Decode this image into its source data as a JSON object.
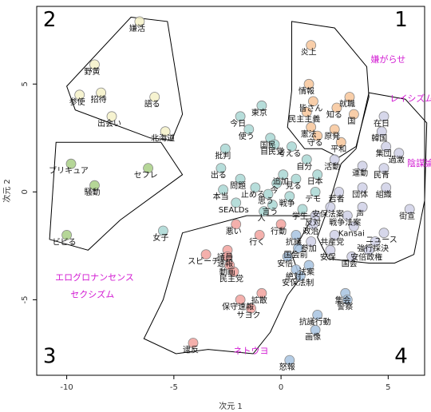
{
  "chart_data": {
    "type": "scatter",
    "title": "",
    "xlabel": "次元 1",
    "ylabel": "次元 2",
    "xlim": [
      -11.4,
      6.7
    ],
    "ylim": [
      -8.5,
      8.6
    ],
    "xticks": [
      -10,
      -5,
      0,
      5
    ],
    "yticks": [
      -5,
      0,
      5
    ],
    "grid": false,
    "colors": {
      "c1": "#f7c59a",
      "c2": "#f5f1c8",
      "c3": "#a8cf85",
      "c4": "#a9d7d3",
      "c5": "#f2a29e",
      "c6": "#a7c3e0",
      "c7": "#cfd0e6",
      "edge": "#888888",
      "annot": "#d21ad2",
      "region": "#000000"
    },
    "points": [
      {
        "label": "嫌活",
        "x": -6.6,
        "y": 7.9,
        "c": "c2"
      },
      {
        "label": "野黄",
        "x": -8.7,
        "y": 5.9,
        "c": "c2"
      },
      {
        "label": "招待",
        "x": -8.4,
        "y": 4.6,
        "c": "c2"
      },
      {
        "label": "参使",
        "x": -9.4,
        "y": 4.5,
        "c": "c2"
      },
      {
        "label": "語る",
        "x": -5.9,
        "y": 4.4,
        "c": "c2"
      },
      {
        "label": "出会い",
        "x": -7.9,
        "y": 3.5,
        "c": "c2"
      },
      {
        "label": "北海道",
        "x": -5.4,
        "y": 2.8,
        "c": "c2"
      },
      {
        "label": "ブリキュア",
        "x": -9.8,
        "y": 1.3,
        "c": "c3"
      },
      {
        "label": "セフレ",
        "x": -6.2,
        "y": 1.1,
        "c": "c3"
      },
      {
        "label": "騒動",
        "x": -8.7,
        "y": 0.3,
        "c": "c3"
      },
      {
        "label": "ビビる",
        "x": -10.0,
        "y": -2.0,
        "c": "c3"
      },
      {
        "label": "女子",
        "x": -5.5,
        "y": -1.8,
        "c": "c4"
      },
      {
        "label": "東京",
        "x": -0.9,
        "y": 4.0,
        "c": "c4"
      },
      {
        "label": "今日",
        "x": -1.9,
        "y": 3.5,
        "c": "c4"
      },
      {
        "label": "使う",
        "x": -1.5,
        "y": 2.9,
        "c": "c4"
      },
      {
        "label": "国民",
        "x": -0.5,
        "y": 2.5,
        "c": "c4"
      },
      {
        "label": "自民党",
        "x": -0.3,
        "y": 2.2,
        "c": "c4"
      },
      {
        "label": "考える",
        "x": 0.5,
        "y": 2.1,
        "c": "c4"
      },
      {
        "label": "批判",
        "x": -2.6,
        "y": 2.0,
        "c": "c4"
      },
      {
        "label": "自分",
        "x": 1.2,
        "y": 1.5,
        "c": "c4"
      },
      {
        "label": "出る",
        "x": -2.8,
        "y": 1.1,
        "c": "c4"
      },
      {
        "label": "問題",
        "x": -1.9,
        "y": 0.6,
        "c": "c4"
      },
      {
        "label": "追加",
        "x": 0.1,
        "y": 0.8,
        "c": "c4"
      },
      {
        "label": "見る",
        "x": 0.7,
        "y": 0.6,
        "c": "c4"
      },
      {
        "label": "日本",
        "x": 1.7,
        "y": 0.8,
        "c": "c4"
      },
      {
        "label": "本当",
        "x": -2.7,
        "y": 0.1,
        "c": "c4"
      },
      {
        "label": "止める",
        "x": -1.2,
        "y": 0.2,
        "c": "c4"
      },
      {
        "label": "今",
        "x": -0.2,
        "y": 0.4,
        "c": "c4"
      },
      {
        "label": "思う",
        "x": -0.6,
        "y": -0.1,
        "c": "c4"
      },
      {
        "label": "戦争",
        "x": 0.4,
        "y": -0.2,
        "c": "c4"
      },
      {
        "label": "デモ",
        "x": 1.6,
        "y": 0.0,
        "c": "c4"
      },
      {
        "label": "SEALDs",
        "x": -2.1,
        "y": -0.5,
        "c": "c4"
      },
      {
        "label": "言う",
        "x": -0.4,
        "y": -0.6,
        "c": "c4"
      },
      {
        "label": "学生",
        "x": 1.0,
        "y": -0.8,
        "c": "c4"
      },
      {
        "label": "人",
        "x": -0.8,
        "y": -0.9,
        "c": "c4"
      },
      {
        "label": "炎上",
        "x": 1.4,
        "y": 6.8,
        "c": "c1"
      },
      {
        "label": "情報",
        "x": 1.3,
        "y": 5.0,
        "c": "c1"
      },
      {
        "label": "皆さん",
        "x": 1.5,
        "y": 4.2,
        "c": "c1"
      },
      {
        "label": "就職",
        "x": 3.2,
        "y": 4.4,
        "c": "c1"
      },
      {
        "label": "知る",
        "x": 2.6,
        "y": 3.9,
        "c": "c1"
      },
      {
        "label": "民主主義",
        "x": 1.2,
        "y": 3.7,
        "c": "c1"
      },
      {
        "label": "国",
        "x": 3.4,
        "y": 3.6,
        "c": "c1"
      },
      {
        "label": "憲法",
        "x": 1.4,
        "y": 3.0,
        "c": "c1"
      },
      {
        "label": "原発",
        "x": 2.5,
        "y": 2.9,
        "c": "c1"
      },
      {
        "label": "守る",
        "x": 1.7,
        "y": 2.6,
        "c": "c1"
      },
      {
        "label": "平和",
        "x": 2.8,
        "y": 2.3,
        "c": "c1"
      },
      {
        "label": "在日",
        "x": 4.8,
        "y": 3.5,
        "c": "c7"
      },
      {
        "label": "韓国",
        "x": 4.7,
        "y": 2.8,
        "c": "c7"
      },
      {
        "label": "集団",
        "x": 4.9,
        "y": 2.1,
        "c": "c7"
      },
      {
        "label": "過激",
        "x": 5.5,
        "y": 1.8,
        "c": "c7"
      },
      {
        "label": "活動",
        "x": 2.5,
        "y": 1.5,
        "c": "c7"
      },
      {
        "label": "運動",
        "x": 3.8,
        "y": 1.2,
        "c": "c7"
      },
      {
        "label": "民青",
        "x": 4.8,
        "y": 1.1,
        "c": "c7"
      },
      {
        "label": "団体",
        "x": 3.8,
        "y": 0.2,
        "c": "c7"
      },
      {
        "label": "組織",
        "x": 4.9,
        "y": 0.2,
        "c": "c7"
      },
      {
        "label": "若者",
        "x": 2.7,
        "y": 0.0,
        "c": "c7"
      },
      {
        "label": "街宣",
        "x": 6.0,
        "y": -0.8,
        "c": "c7"
      },
      {
        "label": "安保法案",
        "x": 2.3,
        "y": -0.7,
        "c": "c7"
      },
      {
        "label": "声",
        "x": 3.8,
        "y": -0.7,
        "c": "c7"
      },
      {
        "label": "反対",
        "x": 1.6,
        "y": -1.1,
        "c": "c7"
      },
      {
        "label": "戦争法案",
        "x": 3.1,
        "y": -1.1,
        "c": "c7"
      },
      {
        "label": "政治",
        "x": 1.5,
        "y": -1.5,
        "c": "c7"
      },
      {
        "label": "Kansai",
        "x": 3.4,
        "y": -1.6,
        "c": "c7"
      },
      {
        "label": "共産党",
        "x": 2.5,
        "y": -2.0,
        "c": "c7"
      },
      {
        "label": "ニュース",
        "x": 4.8,
        "y": -1.9,
        "c": "c7"
      },
      {
        "label": "強行採決",
        "x": 4.4,
        "y": -2.3,
        "c": "c7"
      },
      {
        "label": "参加",
        "x": 1.4,
        "y": -2.3,
        "c": "c7"
      },
      {
        "label": "安保",
        "x": 2.3,
        "y": -2.7,
        "c": "c7"
      },
      {
        "label": "安倍政権",
        "x": 4.1,
        "y": -2.7,
        "c": "c7"
      },
      {
        "label": "国会",
        "x": 3.3,
        "y": -3.0,
        "c": "c7"
      },
      {
        "label": "悪い",
        "x": -2.1,
        "y": -1.5,
        "c": "c5"
      },
      {
        "label": "行動",
        "x": 0.0,
        "y": -1.5,
        "c": "c5"
      },
      {
        "label": "行く",
        "x": -1.0,
        "y": -2.0,
        "c": "c5"
      },
      {
        "label": "議員",
        "x": -2.5,
        "y": -2.7,
        "c": "c5"
      },
      {
        "label": "スピーチ",
        "x": -3.5,
        "y": -2.9,
        "c": "c5"
      },
      {
        "label": "速報",
        "x": -2.5,
        "y": -3.0,
        "c": "c5"
      },
      {
        "label": "動画",
        "x": -2.4,
        "y": -3.4,
        "c": "c5"
      },
      {
        "label": "民主党",
        "x": -2.2,
        "y": -3.7,
        "c": "c5"
      },
      {
        "label": "拡散",
        "x": -0.9,
        "y": -4.7,
        "c": "c5"
      },
      {
        "label": "保守速報",
        "x": -1.9,
        "y": -5.0,
        "c": "c5"
      },
      {
        "label": "サヨク",
        "x": -1.4,
        "y": -5.4,
        "c": "c5"
      },
      {
        "label": "逮反",
        "x": -4.1,
        "y": -7.0,
        "c": "c5"
      },
      {
        "label": "抗議",
        "x": 0.7,
        "y": -2.0,
        "c": "c6"
      },
      {
        "label": "国会前",
        "x": 0.8,
        "y": -2.6,
        "c": "c6"
      },
      {
        "label": "安倍",
        "x": 0.3,
        "y": -3.0,
        "c": "c6"
      },
      {
        "label": "法案",
        "x": 1.3,
        "y": -3.4,
        "c": "c6"
      },
      {
        "label": "絶対",
        "x": 0.7,
        "y": -3.6,
        "c": "c6"
      },
      {
        "label": "安保法制",
        "x": 0.9,
        "y": -3.9,
        "c": "c6"
      },
      {
        "label": "集会",
        "x": 3.0,
        "y": -4.7,
        "c": "c6"
      },
      {
        "label": "警察",
        "x": 3.1,
        "y": -5.0,
        "c": "c6"
      },
      {
        "label": "抗議行動",
        "x": 1.7,
        "y": -5.7,
        "c": "c6"
      },
      {
        "label": "画像",
        "x": 1.6,
        "y": -6.4,
        "c": "c6"
      },
      {
        "label": "怒報",
        "x": 0.4,
        "y": -7.8,
        "c": "c6"
      }
    ],
    "regions": [
      [
        [
          -7.0,
          8.1
        ],
        [
          -5.3,
          7.9
        ],
        [
          -4.6,
          3.6
        ],
        [
          -5.1,
          2.4
        ],
        [
          -6.1,
          2.5
        ],
        [
          -9.6,
          3.8
        ],
        [
          -10.0,
          4.9
        ]
      ],
      [
        [
          -10.5,
          2.3
        ],
        [
          -5.6,
          2.3
        ],
        [
          -4.6,
          0.8
        ],
        [
          -7.5,
          -1.3
        ],
        [
          -9.0,
          -2.7
        ],
        [
          -10.8,
          -2.2
        ]
      ],
      [
        [
          -4.6,
          -1.9
        ],
        [
          -1.6,
          -1.1
        ],
        [
          1.5,
          -1.1
        ],
        [
          0.5,
          -2.9
        ],
        [
          0.9,
          -4.0
        ],
        [
          0.3,
          -4.8
        ],
        [
          -0.5,
          -6.5
        ],
        [
          -1.3,
          -7.5
        ],
        [
          -3.4,
          -7.3
        ],
        [
          -4.9,
          -7.5
        ],
        [
          -6.4,
          -6.8
        ],
        [
          -5.5,
          -5.0
        ]
      ],
      [
        [
          0.5,
          7.9
        ],
        [
          2.5,
          7.6
        ],
        [
          3.5,
          6.4
        ],
        [
          4.0,
          5.8
        ],
        [
          4.1,
          4.4
        ],
        [
          3.5,
          2.1
        ],
        [
          2.7,
          1.6
        ],
        [
          1.9,
          2.0
        ],
        [
          1.1,
          2.0
        ],
        [
          0.3,
          3.0
        ],
        [
          0.5,
          4.7
        ]
      ],
      [
        [
          4.1,
          4.6
        ],
        [
          5.8,
          4.3
        ],
        [
          6.8,
          3.2
        ],
        [
          6.7,
          -0.4
        ],
        [
          6.2,
          -2.9
        ],
        [
          5.3,
          -3.3
        ],
        [
          4.1,
          -3.3
        ],
        [
          2.2,
          -3.1
        ],
        [
          1.7,
          -2.1
        ],
        [
          2.1,
          -1.0
        ],
        [
          2.8,
          1.3
        ],
        [
          3.5,
          2.0
        ]
      ]
    ],
    "annotations": [
      {
        "text": "嫌がらせ",
        "x": 5.0,
        "y": 6.0
      },
      {
        "text": "レイシズム",
        "x": 6.1,
        "y": 4.2
      },
      {
        "text": "陰謀論",
        "x": 6.5,
        "y": 1.2
      },
      {
        "text": "エログロナンセンス",
        "x": -8.7,
        "y": -4.1
      },
      {
        "text": "セクシズム",
        "x": -8.8,
        "y": -4.9
      },
      {
        "text": "ネトウヨ",
        "x": -1.4,
        "y": -7.5
      }
    ],
    "quadrant_labels": [
      {
        "text": "1",
        "x": 5.6,
        "y": 8.0
      },
      {
        "text": "2",
        "x": -10.8,
        "y": 8.0
      },
      {
        "text": "3",
        "x": -10.8,
        "y": -7.6
      },
      {
        "text": "4",
        "x": 5.6,
        "y": -7.6
      }
    ]
  }
}
